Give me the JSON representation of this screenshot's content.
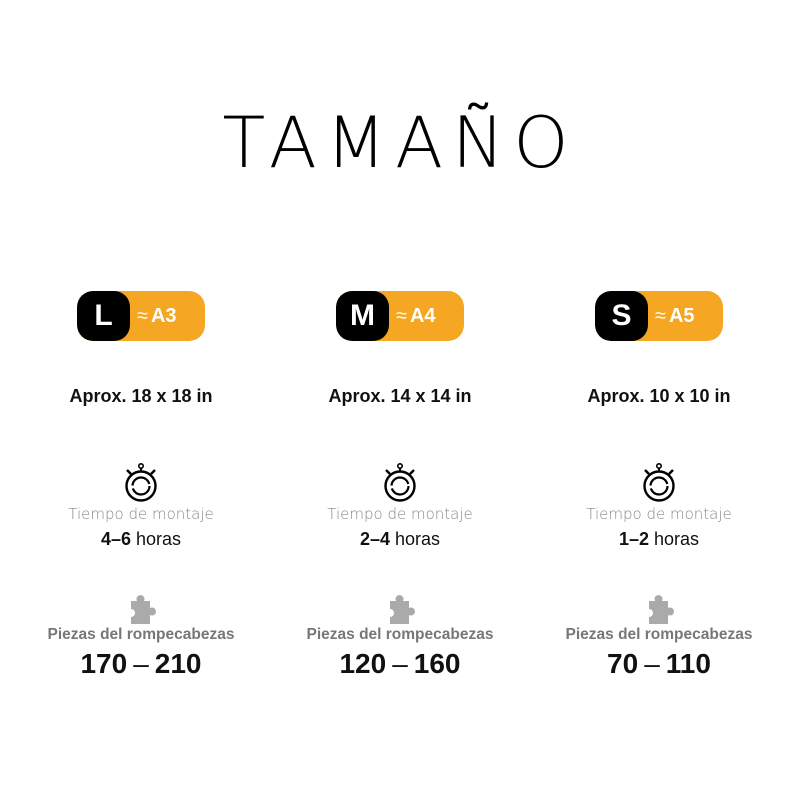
{
  "title": "TAMAÑO",
  "approx_symbol": "≈",
  "sizes": [
    {
      "size": "L",
      "paper": "A3",
      "dims": "Aprox. 18 x 18 in",
      "time_label": "Tiempo de montaje",
      "time_range": "4–6",
      "time_unit": "horas",
      "pieces_label": "Piezas del rompecabezas",
      "pieces_min": "170",
      "pieces_max": "210"
    },
    {
      "size": "M",
      "paper": "A4",
      "dims": "Aprox. 14 x 14 in",
      "time_label": "Tiempo de montaje",
      "time_range": "2–4",
      "time_unit": "horas",
      "pieces_label": "Piezas del rompecabezas",
      "pieces_min": "120",
      "pieces_max": "160"
    },
    {
      "size": "S",
      "paper": "A5",
      "dims": "Aprox. 10 x 10 in",
      "time_label": "Tiempo de montaje",
      "time_range": "1–2",
      "time_unit": "horas",
      "pieces_label": "Piezas del rompecabezas",
      "pieces_min": "70",
      "pieces_max": "110"
    }
  ],
  "colors": {
    "accent": "#F5A623",
    "badge": "#000000",
    "puzzle_icon": "#AAAAAA"
  },
  "icons": [
    "stopwatch-icon",
    "puzzle-piece-icon"
  ]
}
